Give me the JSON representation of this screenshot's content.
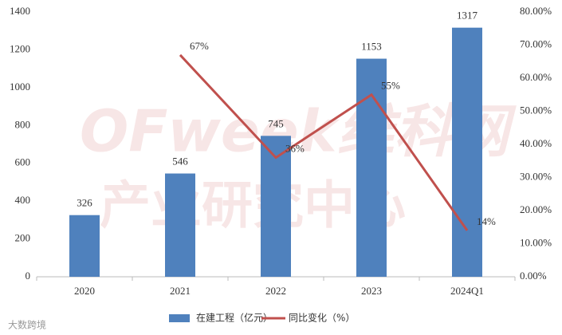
{
  "chart_data": {
    "type": "bar",
    "categories": [
      "2020",
      "2021",
      "2022",
      "2023",
      "2024Q1"
    ],
    "series": [
      {
        "name": "在建工程（亿元）",
        "color": "#4f81bd",
        "type": "bar",
        "values": [
          326,
          546,
          745,
          1153,
          1317
        ]
      },
      {
        "name": "同比变化（%）",
        "color": "#c0504d",
        "type": "line",
        "axis": "y2",
        "values": [
          null,
          67,
          36,
          55,
          14
        ],
        "value_labels": [
          null,
          "67%",
          "36%",
          "55%",
          "14%"
        ]
      }
    ],
    "ylim": [
      0,
      1400
    ],
    "yticks": [
      0,
      200,
      400,
      600,
      800,
      1000,
      1200,
      1400
    ],
    "y2lim": [
      0,
      80
    ],
    "y2ticks": [
      {
        "value": 0,
        "label": "0.00%"
      },
      {
        "value": 10,
        "label": "10.00%"
      },
      {
        "value": 20,
        "label": "20.00%"
      },
      {
        "value": 30,
        "label": "30.00%"
      },
      {
        "value": 40,
        "label": "40.00%"
      },
      {
        "value": 50,
        "label": "50.00%"
      },
      {
        "value": 60,
        "label": "60.00%"
      },
      {
        "value": 70,
        "label": "70.00%"
      },
      {
        "value": 80,
        "label": "80.00%"
      }
    ],
    "grid": false,
    "legend": "bottom",
    "watermark": [
      "OFweek维科网",
      "产业研究中心"
    ],
    "source_logo": "大数跨境"
  }
}
